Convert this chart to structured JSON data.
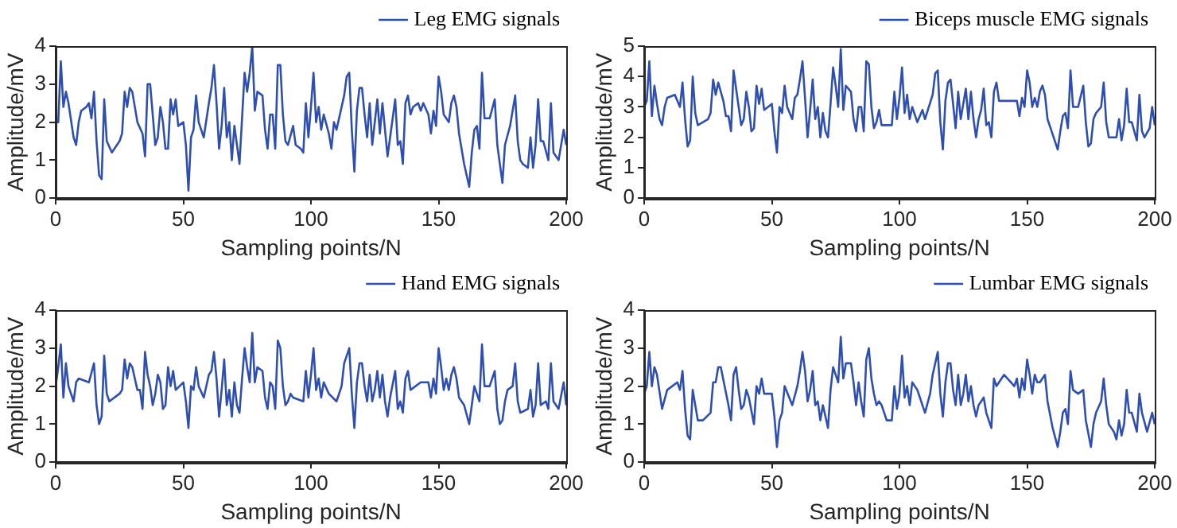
{
  "chart_data": [
    {
      "type": "line",
      "xlabel": "Sampling points/N",
      "ylabel": "Amplitude/mV",
      "xlim": [
        0,
        200
      ],
      "ylim": [
        0,
        4
      ],
      "xticks": [
        0,
        50,
        100,
        150,
        200
      ],
      "yticks": [
        0,
        1,
        2,
        3,
        4
      ],
      "legend": "top right",
      "marker": "none",
      "series": [
        {
          "name": "Leg EMG signals",
          "color": "#2f4fb0",
          "x": [
            0,
            1,
            2,
            3,
            4,
            5,
            7,
            8,
            9,
            10,
            12,
            13,
            14,
            15,
            16,
            17,
            18,
            19,
            20,
            22,
            25,
            26,
            27,
            28,
            29,
            30,
            32,
            34,
            35,
            36,
            37,
            38,
            39,
            40,
            41,
            42,
            43,
            44,
            45,
            46,
            47,
            48,
            50,
            51,
            52,
            53,
            54,
            55,
            56,
            58,
            60,
            61,
            62,
            63,
            64,
            65,
            66,
            67,
            68,
            69,
            70,
            71,
            72,
            73,
            74,
            75,
            76,
            77,
            78,
            79,
            81,
            82,
            83,
            84,
            85,
            86,
            87,
            88,
            89,
            90,
            91,
            93,
            94,
            96,
            97,
            98,
            99,
            100,
            101,
            102,
            103,
            104,
            105,
            107,
            108,
            109,
            110,
            113,
            114,
            115,
            116,
            117,
            118,
            119,
            120,
            121,
            122,
            123,
            124,
            125,
            126,
            127,
            128,
            130,
            131,
            133,
            134,
            135,
            136,
            137,
            138,
            139,
            140,
            142,
            143,
            144,
            146,
            147,
            148,
            149,
            150,
            151,
            152,
            154,
            155,
            156,
            157,
            158,
            160,
            162,
            163,
            164,
            165,
            166,
            167,
            168,
            170,
            172,
            173,
            175,
            176,
            178,
            180,
            181,
            182,
            183,
            185,
            186,
            187,
            188,
            189,
            190,
            191,
            193,
            194,
            195,
            197,
            199,
            200
          ],
          "values": [
            2.0,
            2.0,
            3.6,
            2.4,
            2.8,
            2.5,
            1.6,
            1.4,
            2.0,
            2.3,
            2.4,
            2.5,
            2.1,
            2.8,
            1.5,
            0.6,
            0.5,
            2.6,
            1.5,
            1.2,
            1.5,
            1.7,
            2.8,
            2.4,
            2.9,
            2.8,
            2.0,
            1.7,
            1.1,
            3.0,
            3.0,
            2.2,
            1.4,
            1.6,
            2.4,
            2.0,
            1.3,
            1.3,
            2.6,
            2.2,
            2.6,
            1.9,
            2.0,
            1.4,
            0.2,
            1.6,
            1.8,
            2.7,
            2.0,
            1.6,
            2.5,
            2.9,
            3.5,
            2.5,
            1.3,
            1.9,
            2.9,
            1.6,
            2.0,
            1.0,
            1.9,
            1.4,
            0.9,
            2.1,
            3.3,
            2.8,
            3.3,
            4.0,
            2.3,
            2.8,
            2.7,
            1.8,
            1.3,
            2.2,
            2.2,
            1.3,
            3.5,
            3.5,
            2.2,
            1.5,
            1.4,
            1.9,
            1.4,
            1.3,
            1.2,
            2.5,
            1.6,
            2.4,
            3.3,
            2.0,
            2.4,
            1.8,
            2.2,
            1.7,
            1.3,
            2.0,
            1.8,
            2.7,
            3.2,
            3.3,
            1.8,
            0.7,
            2.3,
            2.9,
            2.9,
            2.2,
            1.6,
            2.5,
            1.4,
            2.0,
            2.6,
            1.7,
            2.5,
            1.1,
            1.6,
            2.6,
            1.4,
            1.5,
            0.9,
            2.5,
            2.7,
            2.2,
            2.4,
            2.5,
            2.3,
            2.5,
            2.2,
            1.7,
            2.3,
            1.9,
            3.2,
            2.8,
            2.2,
            2.0,
            2.5,
            2.7,
            2.4,
            1.7,
            0.9,
            0.3,
            1.2,
            1.8,
            1.9,
            1.3,
            3.3,
            2.1,
            2.1,
            2.6,
            1.4,
            0.4,
            1.4,
            1.9,
            2.7,
            1.5,
            1.0,
            0.9,
            0.8,
            1.6,
            0.8,
            1.4,
            2.6,
            1.5,
            1.5,
            1.0,
            2.5,
            1.2,
            1.0,
            1.8,
            1.4
          ]
        }
      ]
    },
    {
      "type": "line",
      "xlabel": "Sampling points/N",
      "ylabel": "Amplitude/mV",
      "xlim": [
        0,
        200
      ],
      "ylim": [
        0,
        5
      ],
      "xticks": [
        0,
        50,
        100,
        150,
        200
      ],
      "yticks": [
        0,
        1,
        2,
        3,
        4,
        5
      ],
      "legend": "top right",
      "marker": "none",
      "series": [
        {
          "name": "Biceps muscle EMG signals",
          "color": "#2f4fb0",
          "x": [
            0,
            1,
            2,
            3,
            4,
            5,
            6,
            7,
            8,
            9,
            12,
            14,
            15,
            16,
            17,
            18,
            19,
            20,
            21,
            25,
            26,
            27,
            28,
            29,
            31,
            32,
            33,
            34,
            35,
            36,
            37,
            38,
            39,
            40,
            41,
            42,
            43,
            44,
            45,
            46,
            47,
            50,
            51,
            52,
            53,
            54,
            55,
            56,
            58,
            59,
            60,
            61,
            62,
            63,
            64,
            65,
            66,
            67,
            68,
            69,
            70,
            71,
            72,
            73,
            74,
            75,
            76,
            77,
            78,
            79,
            81,
            82,
            83,
            84,
            85,
            86,
            87,
            88,
            89,
            90,
            91,
            92,
            93,
            97,
            98,
            99,
            100,
            101,
            102,
            103,
            104,
            105,
            107,
            109,
            110,
            113,
            114,
            115,
            116,
            117,
            118,
            119,
            120,
            121,
            122,
            123,
            124,
            125,
            126,
            127,
            128,
            129,
            130,
            131,
            132,
            133,
            134,
            135,
            136,
            137,
            138,
            139,
            143,
            146,
            147,
            148,
            149,
            150,
            151,
            152,
            153,
            154,
            155,
            156,
            157,
            158,
            160,
            162,
            163,
            164,
            165,
            166,
            167,
            168,
            170,
            172,
            173,
            174,
            175,
            176,
            177,
            179,
            180,
            181,
            182,
            185,
            186,
            187,
            188,
            189,
            190,
            191,
            193,
            194,
            195,
            196,
            198,
            199,
            200
          ],
          "values": [
            3.0,
            3.2,
            4.5,
            2.7,
            3.7,
            3.1,
            2.6,
            2.4,
            3.0,
            3.3,
            3.4,
            3.0,
            3.8,
            2.6,
            1.7,
            1.9,
            4.0,
            2.8,
            2.4,
            2.6,
            2.8,
            3.9,
            3.4,
            3.8,
            3.2,
            2.7,
            2.7,
            2.2,
            4.2,
            3.6,
            3.0,
            2.4,
            2.6,
            3.5,
            3.0,
            2.2,
            2.3,
            3.7,
            3.1,
            3.6,
            2.9,
            3.1,
            2.2,
            1.5,
            3.0,
            2.8,
            3.7,
            3.0,
            2.6,
            3.3,
            3.4,
            3.9,
            4.5,
            3.3,
            2.0,
            2.9,
            3.9,
            2.6,
            3.0,
            2.0,
            2.8,
            2.2,
            2.0,
            3.1,
            4.3,
            3.7,
            3.0,
            4.9,
            2.9,
            3.7,
            3.5,
            2.6,
            2.2,
            3.0,
            3.0,
            2.2,
            4.5,
            4.4,
            3.0,
            2.3,
            2.5,
            2.9,
            2.4,
            2.4,
            3.5,
            2.6,
            3.3,
            4.3,
            2.8,
            3.4,
            2.6,
            3.0,
            2.5,
            2.9,
            2.6,
            3.4,
            4.1,
            4.2,
            2.5,
            1.6,
            3.2,
            3.8,
            3.9,
            3.1,
            2.3,
            3.5,
            2.6,
            3.1,
            3.6,
            2.6,
            3.5,
            2.6,
            2.0,
            2.6,
            2.9,
            3.6,
            2.4,
            2.5,
            2.0,
            3.5,
            3.8,
            3.2,
            3.2,
            3.2,
            2.7,
            3.3,
            3.0,
            4.2,
            3.8,
            3.0,
            3.3,
            3.0,
            3.5,
            3.7,
            3.4,
            2.6,
            2.1,
            1.6,
            2.2,
            2.7,
            2.8,
            2.3,
            4.2,
            3.0,
            3.0,
            3.7,
            2.5,
            1.7,
            1.8,
            2.6,
            2.8,
            3.0,
            3.8,
            2.5,
            2.0,
            2.0,
            2.6,
            1.9,
            2.4,
            3.6,
            2.5,
            2.5,
            1.9,
            3.4,
            2.2,
            2.0,
            2.3,
            3.0,
            2.4
          ]
        }
      ]
    },
    {
      "type": "line",
      "xlabel": "Sampling points/N",
      "ylabel": "Amplitude/mV",
      "xlim": [
        0,
        200
      ],
      "ylim": [
        0,
        4
      ],
      "xticks": [
        0,
        50,
        100,
        150,
        200
      ],
      "yticks": [
        0,
        1,
        2,
        3,
        4
      ],
      "legend": "top right",
      "marker": "none",
      "series": [
        {
          "name": "Hand EMG signals",
          "color": "#2f4fb0",
          "x": [
            0,
            1,
            2,
            3,
            4,
            5,
            7,
            8,
            9,
            13,
            15,
            16,
            17,
            18,
            19,
            20,
            21,
            25,
            26,
            27,
            28,
            29,
            30,
            32,
            33,
            34,
            35,
            36,
            37,
            38,
            39,
            40,
            41,
            42,
            43,
            44,
            45,
            46,
            47,
            50,
            51,
            52,
            53,
            54,
            55,
            56,
            58,
            60,
            61,
            62,
            63,
            64,
            65,
            66,
            67,
            68,
            69,
            70,
            71,
            72,
            73,
            74,
            75,
            76,
            77,
            78,
            79,
            81,
            82,
            83,
            84,
            85,
            86,
            87,
            88,
            89,
            90,
            91,
            92,
            93,
            97,
            98,
            99,
            100,
            101,
            102,
            103,
            104,
            105,
            107,
            110,
            112,
            113,
            115,
            116,
            117,
            118,
            119,
            120,
            121,
            122,
            123,
            124,
            125,
            126,
            127,
            128,
            129,
            130,
            131,
            133,
            134,
            135,
            136,
            137,
            138,
            139,
            143,
            146,
            147,
            148,
            149,
            150,
            151,
            152,
            153,
            154,
            155,
            156,
            157,
            158,
            160,
            162,
            163,
            164,
            166,
            167,
            168,
            170,
            172,
            173,
            174,
            175,
            176,
            177,
            179,
            180,
            181,
            182,
            185,
            186,
            187,
            188,
            189,
            190,
            192,
            193,
            194,
            195,
            197,
            199,
            200
          ],
          "values": [
            2.0,
            2.5,
            3.1,
            1.7,
            2.6,
            2.0,
            1.6,
            2.1,
            2.2,
            2.1,
            2.6,
            1.5,
            1.0,
            1.2,
            2.8,
            1.8,
            1.6,
            1.8,
            1.9,
            2.7,
            2.2,
            2.6,
            2.5,
            1.9,
            1.9,
            1.4,
            2.9,
            2.3,
            2.0,
            1.5,
            1.8,
            2.3,
            2.1,
            1.4,
            1.5,
            2.5,
            2.0,
            2.4,
            1.9,
            2.1,
            1.6,
            0.9,
            2.0,
            1.9,
            2.5,
            2.0,
            1.7,
            2.3,
            2.4,
            2.9,
            2.2,
            1.2,
            1.9,
            2.7,
            1.5,
            1.9,
            1.2,
            2.1,
            1.5,
            1.3,
            2.2,
            3.0,
            2.5,
            2.1,
            3.4,
            2.1,
            2.5,
            2.4,
            1.7,
            1.4,
            2.1,
            2.0,
            1.4,
            3.2,
            3.0,
            2.0,
            1.5,
            1.6,
            1.8,
            1.7,
            1.6,
            2.4,
            1.7,
            2.3,
            3.0,
            1.9,
            2.2,
            1.7,
            2.1,
            1.8,
            1.6,
            2.0,
            2.6,
            3.0,
            1.8,
            0.9,
            2.1,
            2.6,
            2.6,
            2.0,
            1.6,
            2.3,
            1.6,
            1.9,
            2.4,
            1.7,
            2.3,
            1.6,
            1.2,
            1.7,
            2.4,
            1.4,
            1.6,
            1.3,
            2.2,
            2.4,
            1.9,
            2.1,
            2.1,
            1.7,
            2.2,
            1.8,
            3.0,
            2.5,
            1.9,
            2.2,
            1.9,
            2.3,
            2.5,
            2.2,
            1.7,
            1.5,
            1.0,
            1.5,
            2.0,
            1.6,
            3.1,
            2.0,
            2.0,
            2.4,
            1.4,
            1.0,
            1.1,
            1.6,
            1.9,
            2.0,
            2.6,
            1.6,
            1.3,
            1.4,
            1.9,
            1.2,
            1.5,
            2.6,
            1.5,
            1.6,
            1.4,
            2.6,
            1.6,
            1.4,
            2.1,
            1.5
          ]
        }
      ]
    },
    {
      "type": "line",
      "xlabel": "Sampling points/N",
      "ylabel": "Amplitude/mV",
      "xlim": [
        0,
        200
      ],
      "ylim": [
        0,
        4
      ],
      "xticks": [
        0,
        50,
        100,
        150,
        200
      ],
      "yticks": [
        0,
        1,
        2,
        3,
        4
      ],
      "legend": "top right",
      "marker": "none",
      "series": [
        {
          "name": "Lumbar EMG signals",
          "color": "#2f4fb0",
          "x": [
            0,
            1,
            2,
            3,
            4,
            5,
            7,
            9,
            13,
            14,
            15,
            16,
            17,
            18,
            19,
            21,
            23,
            26,
            27,
            28,
            29,
            30,
            33,
            34,
            35,
            36,
            37,
            38,
            39,
            40,
            41,
            43,
            44,
            45,
            46,
            47,
            50,
            51,
            52,
            53,
            54,
            55,
            58,
            60,
            61,
            62,
            63,
            64,
            65,
            66,
            67,
            68,
            69,
            70,
            71,
            72,
            73,
            74,
            76,
            77,
            78,
            79,
            81,
            82,
            83,
            84,
            85,
            86,
            87,
            88,
            89,
            90,
            91,
            92,
            93,
            95,
            97,
            98,
            99,
            100,
            101,
            102,
            103,
            104,
            105,
            107,
            110,
            112,
            113,
            115,
            116,
            117,
            118,
            119,
            120,
            121,
            122,
            123,
            124,
            125,
            126,
            127,
            128,
            129,
            130,
            131,
            133,
            134,
            136,
            137,
            138,
            139,
            141,
            145,
            146,
            147,
            148,
            149,
            150,
            151,
            152,
            153,
            154,
            155,
            157,
            158,
            160,
            162,
            163,
            164,
            165,
            166,
            167,
            168,
            170,
            172,
            173,
            175,
            176,
            177,
            179,
            180,
            181,
            182,
            184,
            185,
            186,
            187,
            188,
            189,
            190,
            191,
            193,
            194,
            195,
            197,
            199,
            200
          ],
          "values": [
            1.8,
            2.0,
            2.9,
            2.0,
            2.5,
            2.3,
            1.4,
            1.9,
            2.1,
            1.9,
            2.4,
            1.4,
            0.7,
            0.6,
            1.9,
            1.1,
            1.1,
            1.3,
            2.1,
            2.1,
            2.5,
            2.5,
            1.5,
            1.1,
            2.3,
            2.5,
            1.9,
            1.4,
            1.5,
            1.9,
            1.7,
            1.0,
            2.0,
            1.8,
            2.2,
            1.8,
            1.8,
            1.2,
            0.4,
            1.1,
            1.3,
            2.0,
            1.5,
            2.0,
            2.4,
            2.9,
            2.4,
            1.6,
            1.9,
            2.4,
            1.5,
            1.6,
            1.1,
            1.5,
            1.2,
            0.9,
            1.9,
            2.5,
            2.1,
            3.3,
            2.2,
            2.6,
            2.6,
            2.1,
            1.5,
            2.1,
            1.6,
            1.2,
            2.7,
            3.0,
            2.2,
            1.8,
            1.5,
            1.6,
            1.5,
            1.1,
            1.1,
            2.0,
            1.4,
            1.8,
            2.8,
            1.7,
            2.0,
            1.5,
            2.1,
            1.9,
            1.3,
            1.8,
            2.3,
            2.9,
            1.8,
            1.2,
            2.1,
            2.6,
            2.6,
            1.9,
            1.5,
            2.3,
            1.5,
            1.8,
            2.3,
            1.6,
            2.0,
            1.5,
            1.2,
            1.5,
            1.7,
            1.3,
            0.9,
            2.2,
            2.0,
            2.1,
            2.3,
            2.0,
            2.2,
            1.7,
            2.2,
            1.9,
            2.7,
            2.3,
            1.8,
            2.3,
            2.1,
            2.1,
            2.3,
            1.6,
            0.9,
            0.4,
            0.8,
            1.3,
            1.4,
            1.0,
            2.4,
            1.9,
            1.8,
            1.9,
            1.1,
            0.4,
            1.0,
            1.3,
            1.6,
            2.2,
            1.5,
            1.0,
            0.8,
            0.6,
            1.1,
            0.7,
            1.0,
            1.9,
            1.3,
            1.3,
            0.8,
            1.8,
            1.3,
            0.8,
            1.3,
            1.0
          ]
        }
      ]
    }
  ]
}
